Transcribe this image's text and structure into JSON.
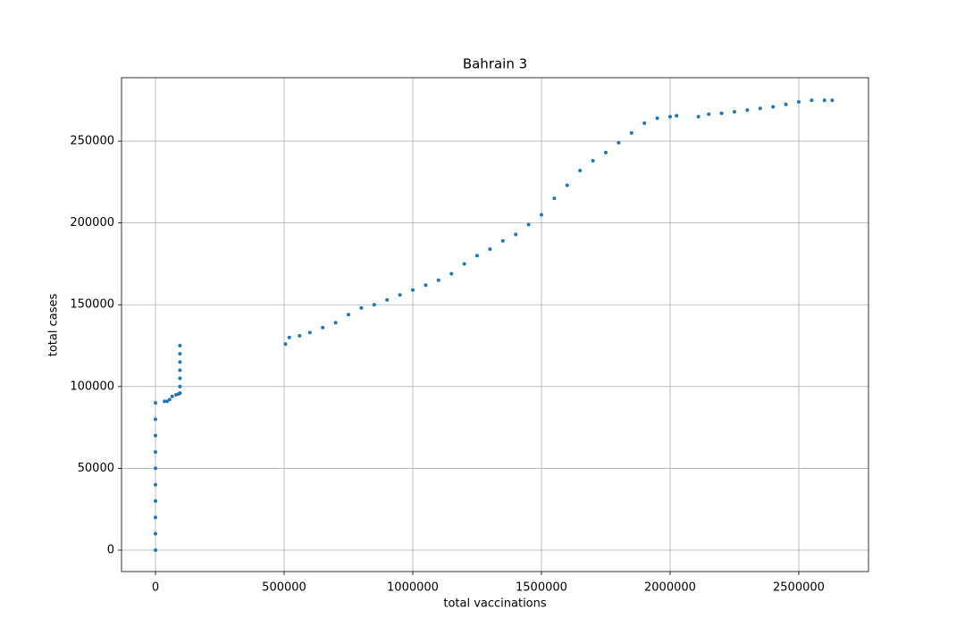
{
  "chart_data": {
    "type": "scatter",
    "title": "Bahrain 3",
    "x_label": "total vaccinations",
    "y_label": "total cases",
    "color": "#1f77b4",
    "grid": true,
    "xlim": [
      -132000,
      2771000
    ],
    "ylim": [
      -13100,
      288800
    ],
    "xticks": [
      0,
      500000,
      1000000,
      1500000,
      2000000,
      2500000
    ],
    "yticks": [
      0,
      50000,
      100000,
      150000,
      200000,
      250000
    ],
    "x": [
      0,
      0,
      0,
      0,
      0,
      0,
      0,
      0,
      0,
      0,
      35000,
      45000,
      55000,
      65000,
      80000,
      90000,
      95000,
      95000,
      95000,
      95000,
      95000,
      95000,
      95000,
      505000,
      520000,
      560000,
      600000,
      650000,
      700000,
      750000,
      800000,
      850000,
      900000,
      950000,
      1000000,
      1050000,
      1100000,
      1150000,
      1200000,
      1250000,
      1300000,
      1350000,
      1400000,
      1450000,
      1500000,
      1550000,
      1600000,
      1650000,
      1700000,
      1750000,
      1800000,
      1850000,
      1900000,
      1950000,
      2000000,
      2025000,
      2110000,
      2150000,
      2200000,
      2250000,
      2300000,
      2350000,
      2400000,
      2450000,
      2500000,
      2550000,
      2600000,
      2630000
    ],
    "values": [
      0,
      10000,
      20000,
      30000,
      40000,
      50000,
      60000,
      70000,
      80000,
      90000,
      91000,
      91000,
      92000,
      94000,
      95000,
      95500,
      96000,
      100000,
      105000,
      110000,
      115000,
      120000,
      125000,
      126000,
      130000,
      131000,
      133000,
      136000,
      139000,
      144000,
      148000,
      150000,
      153000,
      156000,
      159000,
      162000,
      165000,
      169000,
      175000,
      180000,
      184000,
      189000,
      193000,
      199000,
      205000,
      215000,
      223000,
      232000,
      238000,
      243000,
      249000,
      255000,
      261000,
      264000,
      265000,
      265500,
      265000,
      266500,
      267000,
      268000,
      269000,
      270000,
      271000,
      272500,
      274000,
      275000,
      275000,
      275000
    ]
  }
}
